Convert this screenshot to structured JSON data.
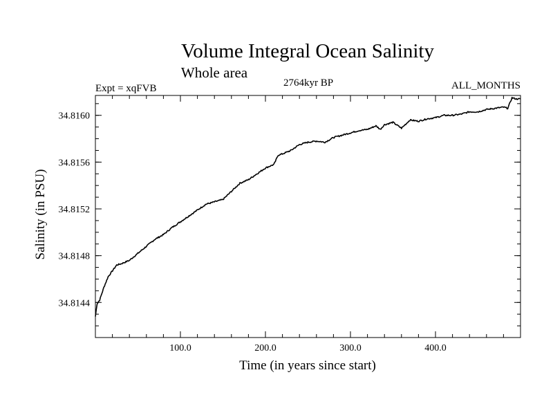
{
  "chart_data": {
    "type": "line",
    "title": "Volume Integral Ocean Salinity",
    "subtitle": "Whole area",
    "experiment_label": "Expt = xqFVB",
    "period_label": "2764kyr BP",
    "months_label": "ALL_MONTHS",
    "xlabel": "Time (in years since start)",
    "ylabel": "Salinity (in PSU)",
    "xlim": [
      0,
      500
    ],
    "ylim": [
      34.8141,
      34.81617
    ],
    "x_ticks": [
      100,
      200,
      300,
      400
    ],
    "x_tick_labels": [
      "100.0",
      "200.0",
      "300.0",
      "400.0"
    ],
    "y_ticks": [
      34.8144,
      34.8148,
      34.8152,
      34.8156,
      34.816
    ],
    "y_tick_labels": [
      "34.8144",
      "34.8148",
      "34.8152",
      "34.8156",
      "34.8160"
    ],
    "grid": false,
    "series": [
      {
        "name": "Volume integral salinity",
        "x": [
          0,
          2,
          5,
          10,
          15,
          20,
          25,
          30,
          40,
          50,
          60,
          70,
          80,
          90,
          100,
          110,
          120,
          130,
          140,
          150,
          160,
          170,
          180,
          190,
          200,
          210,
          215,
          220,
          230,
          240,
          250,
          260,
          270,
          280,
          290,
          300,
          310,
          320,
          330,
          335,
          340,
          350,
          360,
          370,
          380,
          390,
          400,
          410,
          420,
          430,
          440,
          450,
          460,
          470,
          480,
          485,
          490,
          495,
          500
        ],
        "values": [
          34.81428,
          34.81439,
          34.81442,
          34.81453,
          34.81462,
          34.81467,
          34.81472,
          34.81473,
          34.81476,
          34.81482,
          34.81488,
          34.81494,
          34.81498,
          34.81504,
          34.81509,
          34.81514,
          34.81519,
          34.81524,
          34.81526,
          34.81528,
          34.81535,
          34.81542,
          34.81545,
          34.8155,
          34.81555,
          34.81558,
          34.81566,
          34.81567,
          34.8157,
          34.81575,
          34.81577,
          34.81578,
          34.81577,
          34.81581,
          34.81583,
          34.81585,
          34.81587,
          34.81588,
          34.81591,
          34.81588,
          34.81592,
          34.81594,
          34.81589,
          34.81596,
          34.81595,
          34.81597,
          34.81598,
          34.816,
          34.816,
          34.81601,
          34.81603,
          34.81603,
          34.81605,
          34.81606,
          34.81607,
          34.81606,
          34.81615,
          34.81614,
          34.81614
        ]
      }
    ]
  }
}
